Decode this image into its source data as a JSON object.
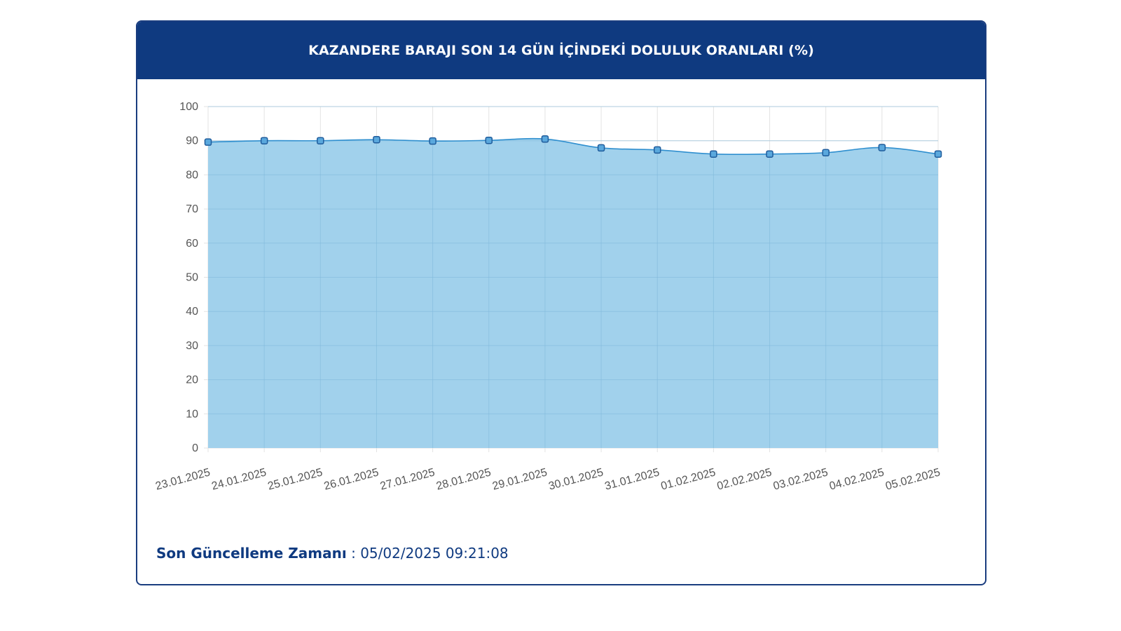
{
  "header": {
    "title": "KAZANDERE BARAJI SON 14 GÜN İÇİNDEKİ DOLULUK ORANLARI (%)"
  },
  "footer": {
    "label": "Son Güncelleme Zamanı",
    "separator": " : ",
    "value": "05/02/2025 09:21:08"
  },
  "colors": {
    "header_bg": "#0f3a80",
    "area_fill": "#9ccfeb",
    "line": "#2f8fcf",
    "marker_fill": "#5aa8dd",
    "marker_stroke": "#1f5c9c"
  },
  "chart_data": {
    "type": "area",
    "title": "KAZANDERE BARAJI SON 14 GÜN İÇİNDEKİ DOLULUK ORANLARI (%)",
    "categories": [
      "23.01.2025",
      "24.01.2025",
      "25.01.2025",
      "26.01.2025",
      "27.01.2025",
      "28.01.2025",
      "29.01.2025",
      "30.01.2025",
      "31.01.2025",
      "01.02.2025",
      "02.02.2025",
      "03.02.2025",
      "04.02.2025",
      "05.02.2025"
    ],
    "series": [
      {
        "values": [
          89.6,
          90.0,
          90.0,
          90.3,
          89.9,
          90.1,
          90.5,
          87.9,
          87.3,
          86.1,
          86.1,
          86.5,
          88.0,
          86.1
        ]
      }
    ],
    "ylim": [
      0,
      100
    ],
    "yticks": [
      0,
      10,
      20,
      30,
      40,
      50,
      60,
      70,
      80,
      90,
      100
    ],
    "grid": true,
    "legend": "none"
  }
}
